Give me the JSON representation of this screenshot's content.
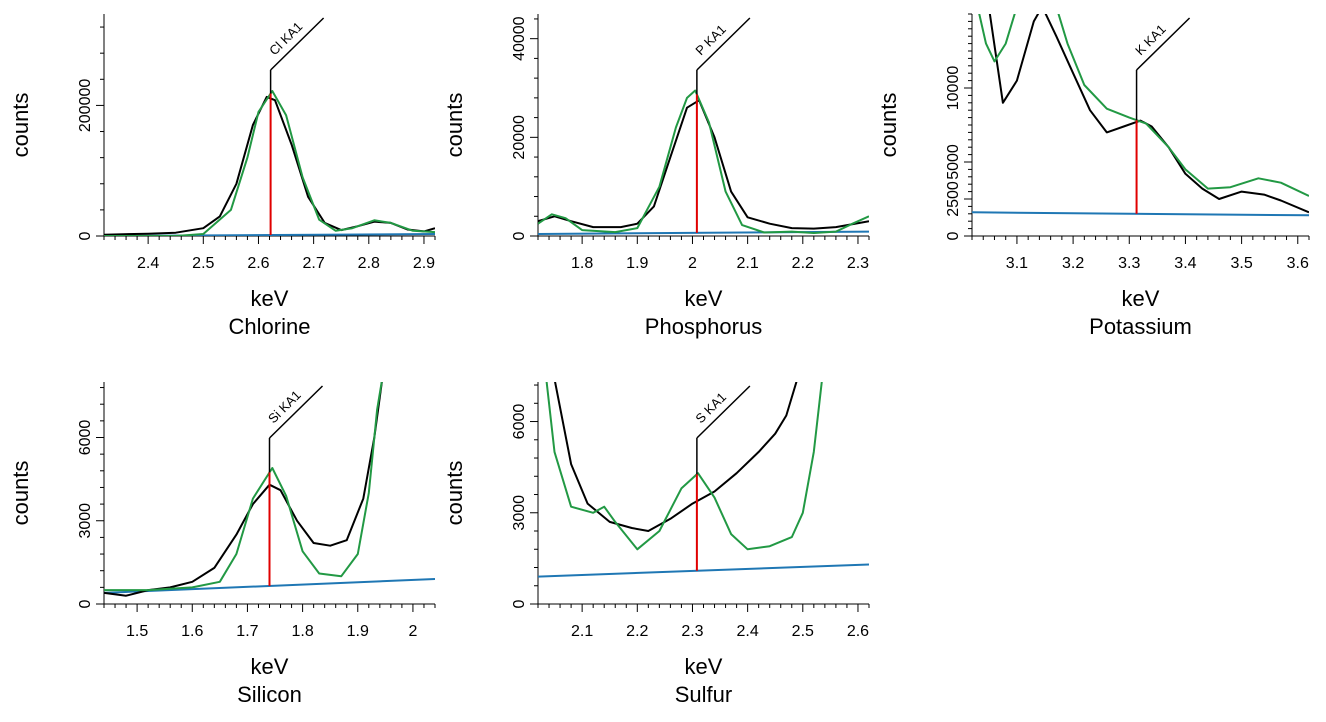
{
  "chart_data": [
    {
      "type": "line",
      "title": "Chlorine",
      "xlabel": "keV",
      "ylabel": "counts",
      "xlim": [
        2.32,
        2.92
      ],
      "ylim": [
        0,
        340000
      ],
      "xticks": [
        2.4,
        2.5,
        2.6,
        2.7,
        2.8,
        2.9
      ],
      "xtick_labels": [
        "2.4",
        "2.5",
        "2.6",
        "2.7",
        "2.8",
        "2.9"
      ],
      "yticks": [
        0,
        200000
      ],
      "ytick_labels": [
        "0",
        "200000"
      ],
      "peak": {
        "label": "Cl KA1",
        "x": 2.622
      },
      "series": [
        {
          "color": "#000000",
          "points": [
            [
              2.32,
              2000
            ],
            [
              2.4,
              3500
            ],
            [
              2.45,
              5000
            ],
            [
              2.5,
              12000
            ],
            [
              2.53,
              30000
            ],
            [
              2.56,
              80000
            ],
            [
              2.59,
              170000
            ],
            [
              2.615,
              213000
            ],
            [
              2.63,
              208000
            ],
            [
              2.66,
              140000
            ],
            [
              2.69,
              60000
            ],
            [
              2.72,
              20000
            ],
            [
              2.75,
              9000
            ],
            [
              2.78,
              15000
            ],
            [
              2.81,
              22000
            ],
            [
              2.84,
              20000
            ],
            [
              2.87,
              10000
            ],
            [
              2.9,
              7000
            ],
            [
              2.92,
              12000
            ]
          ]
        },
        {
          "color": "#229944",
          "points": [
            [
              2.32,
              0
            ],
            [
              2.45,
              0
            ],
            [
              2.5,
              3000
            ],
            [
              2.55,
              40000
            ],
            [
              2.58,
              120000
            ],
            [
              2.6,
              190000
            ],
            [
              2.625,
              222000
            ],
            [
              2.65,
              185000
            ],
            [
              2.68,
              90000
            ],
            [
              2.71,
              25000
            ],
            [
              2.74,
              8000
            ],
            [
              2.77,
              12000
            ],
            [
              2.81,
              24000
            ],
            [
              2.84,
              20000
            ],
            [
              2.88,
              8000
            ],
            [
              2.92,
              6000
            ]
          ]
        },
        {
          "color": "#1f77b4",
          "points": [
            [
              2.32,
              0
            ],
            [
              2.92,
              3000
            ]
          ]
        }
      ]
    },
    {
      "type": "line",
      "title": "Phosphorus",
      "xlabel": "keV",
      "ylabel": "counts",
      "xlim": [
        1.72,
        2.32
      ],
      "ylim": [
        0,
        45000
      ],
      "xticks": [
        1.8,
        1.9,
        2.0,
        2.1,
        2.2,
        2.3
      ],
      "xtick_labels": [
        "1.8",
        "1.9",
        "2",
        "2.1",
        "2.2",
        "2.3"
      ],
      "yticks": [
        0,
        20000,
        40000
      ],
      "ytick_labels": [
        "0",
        "20000",
        "40000"
      ],
      "peak": {
        "label": "P KA1",
        "x": 2.008
      },
      "series": [
        {
          "color": "#000000",
          "points": [
            [
              1.72,
              3000
            ],
            [
              1.75,
              4000
            ],
            [
              1.78,
              3000
            ],
            [
              1.82,
              1800
            ],
            [
              1.87,
              1800
            ],
            [
              1.9,
              2500
            ],
            [
              1.93,
              6000
            ],
            [
              1.96,
              16000
            ],
            [
              1.99,
              26000
            ],
            [
              2.012,
              27500
            ],
            [
              2.04,
              20000
            ],
            [
              2.07,
              9000
            ],
            [
              2.1,
              3800
            ],
            [
              2.14,
              2500
            ],
            [
              2.18,
              1600
            ],
            [
              2.22,
              1500
            ],
            [
              2.26,
              1800
            ],
            [
              2.32,
              3000
            ]
          ]
        },
        {
          "color": "#229944",
          "points": [
            [
              1.72,
              2500
            ],
            [
              1.745,
              4400
            ],
            [
              1.77,
              3600
            ],
            [
              1.8,
              1200
            ],
            [
              1.86,
              800
            ],
            [
              1.9,
              1600
            ],
            [
              1.94,
              10000
            ],
            [
              1.97,
              22000
            ],
            [
              1.99,
              28000
            ],
            [
              2.005,
              29500
            ],
            [
              2.03,
              23000
            ],
            [
              2.06,
              9000
            ],
            [
              2.09,
              2200
            ],
            [
              2.13,
              700
            ],
            [
              2.18,
              900
            ],
            [
              2.22,
              600
            ],
            [
              2.26,
              900
            ],
            [
              2.29,
              2500
            ],
            [
              2.32,
              4000
            ]
          ]
        },
        {
          "color": "#1f77b4",
          "points": [
            [
              1.72,
              400
            ],
            [
              2.32,
              900
            ]
          ]
        }
      ]
    },
    {
      "type": "line",
      "title": "Potassium",
      "xlabel": "keV",
      "ylabel": "counts",
      "xlim": [
        3.02,
        3.62
      ],
      "ylim": [
        0,
        15000
      ],
      "xticks": [
        3.1,
        3.2,
        3.3,
        3.4,
        3.5,
        3.6
      ],
      "xtick_labels": [
        "3.1",
        "3.2",
        "3.3",
        "3.4",
        "3.5",
        "3.6"
      ],
      "yticks": [
        0,
        2500,
        5000,
        10000
      ],
      "ytick_labels": [
        "0",
        "2500",
        "5000",
        "10000"
      ],
      "peak": {
        "label": "K KA1",
        "x": 3.313
      },
      "series": [
        {
          "color": "#000000",
          "points": [
            [
              3.05,
              15500
            ],
            [
              3.075,
              9000
            ],
            [
              3.1,
              10500
            ],
            [
              3.13,
              14500
            ],
            [
              3.145,
              15500
            ],
            [
              3.17,
              13500
            ],
            [
              3.2,
              11000
            ],
            [
              3.23,
              8500
            ],
            [
              3.26,
              7000
            ],
            [
              3.29,
              7400
            ],
            [
              3.32,
              7800
            ],
            [
              3.34,
              7400
            ],
            [
              3.37,
              6000
            ],
            [
              3.4,
              4200
            ],
            [
              3.43,
              3200
            ],
            [
              3.46,
              2500
            ],
            [
              3.5,
              3000
            ],
            [
              3.54,
              2800
            ],
            [
              3.57,
              2400
            ],
            [
              3.62,
              1600
            ]
          ]
        },
        {
          "color": "#229944",
          "points": [
            [
              3.03,
              15500
            ],
            [
              3.045,
              13000
            ],
            [
              3.06,
              11800
            ],
            [
              3.08,
              13000
            ],
            [
              3.1,
              15500
            ],
            [
              3.17,
              15500
            ],
            [
              3.19,
              13000
            ],
            [
              3.22,
              10200
            ],
            [
              3.26,
              8600
            ],
            [
              3.3,
              8000
            ],
            [
              3.33,
              7600
            ],
            [
              3.37,
              6000
            ],
            [
              3.4,
              4500
            ],
            [
              3.44,
              3200
            ],
            [
              3.48,
              3300
            ],
            [
              3.53,
              3900
            ],
            [
              3.57,
              3600
            ],
            [
              3.62,
              2700
            ]
          ]
        },
        {
          "color": "#1f77b4",
          "points": [
            [
              3.02,
              1600
            ],
            [
              3.62,
              1400
            ]
          ]
        }
      ]
    },
    {
      "type": "line",
      "title": "Silicon",
      "xlabel": "keV",
      "ylabel": "counts",
      "xlim": [
        1.44,
        2.04
      ],
      "ylim": [
        0,
        8000
      ],
      "xticks": [
        1.5,
        1.6,
        1.7,
        1.8,
        1.9,
        2.0
      ],
      "xtick_labels": [
        "1.5",
        "1.6",
        "1.7",
        "1.8",
        "1.9",
        "2"
      ],
      "yticks": [
        0,
        3000,
        6000
      ],
      "ytick_labels": [
        "0",
        "3000",
        "6000"
      ],
      "peak": {
        "label": "Si KA1",
        "x": 1.74
      },
      "series": [
        {
          "color": "#000000",
          "points": [
            [
              1.44,
              400
            ],
            [
              1.48,
              300
            ],
            [
              1.52,
              500
            ],
            [
              1.56,
              600
            ],
            [
              1.6,
              800
            ],
            [
              1.64,
              1300
            ],
            [
              1.68,
              2500
            ],
            [
              1.71,
              3600
            ],
            [
              1.74,
              4300
            ],
            [
              1.76,
              4100
            ],
            [
              1.79,
              3000
            ],
            [
              1.82,
              2200
            ],
            [
              1.85,
              2100
            ],
            [
              1.88,
              2300
            ],
            [
              1.91,
              3800
            ],
            [
              1.93,
              6000
            ],
            [
              1.945,
              8200
            ]
          ]
        },
        {
          "color": "#229944",
          "points": [
            [
              1.44,
              500
            ],
            [
              1.52,
              500
            ],
            [
              1.6,
              600
            ],
            [
              1.65,
              800
            ],
            [
              1.68,
              1800
            ],
            [
              1.71,
              3800
            ],
            [
              1.745,
              4900
            ],
            [
              1.77,
              3900
            ],
            [
              1.8,
              1900
            ],
            [
              1.83,
              1100
            ],
            [
              1.87,
              1000
            ],
            [
              1.9,
              1800
            ],
            [
              1.92,
              4000
            ],
            [
              1.935,
              7000
            ],
            [
              1.945,
              8200
            ]
          ]
        },
        {
          "color": "#1f77b4",
          "points": [
            [
              1.44,
              400
            ],
            [
              2.04,
              900
            ]
          ]
        }
      ]
    },
    {
      "type": "line",
      "title": "Sulfur",
      "xlabel": "keV",
      "ylabel": "counts",
      "xlim": [
        2.02,
        2.62
      ],
      "ylim": [
        0,
        7300
      ],
      "xticks": [
        2.1,
        2.2,
        2.3,
        2.4,
        2.5,
        2.6
      ],
      "xtick_labels": [
        "2.1",
        "2.2",
        "2.3",
        "2.4",
        "2.5",
        "2.6"
      ],
      "yticks": [
        0,
        3000,
        6000
      ],
      "ytick_labels": [
        "0",
        "3000",
        "6000"
      ],
      "peak": {
        "label": "S KA1",
        "x": 2.308
      },
      "series": [
        {
          "color": "#000000",
          "points": [
            [
              2.05,
              7400
            ],
            [
              2.08,
              4600
            ],
            [
              2.11,
              3300
            ],
            [
              2.15,
              2700
            ],
            [
              2.19,
              2500
            ],
            [
              2.22,
              2400
            ],
            [
              2.26,
              2800
            ],
            [
              2.3,
              3300
            ],
            [
              2.34,
              3700
            ],
            [
              2.38,
              4300
            ],
            [
              2.42,
              5000
            ],
            [
              2.45,
              5600
            ],
            [
              2.47,
              6200
            ],
            [
              2.49,
              7400
            ]
          ]
        },
        {
          "color": "#229944",
          "points": [
            [
              2.035,
              7400
            ],
            [
              2.05,
              5000
            ],
            [
              2.08,
              3200
            ],
            [
              2.12,
              3000
            ],
            [
              2.14,
              3200
            ],
            [
              2.16,
              2700
            ],
            [
              2.2,
              1800
            ],
            [
              2.24,
              2400
            ],
            [
              2.28,
              3800
            ],
            [
              2.31,
              4300
            ],
            [
              2.34,
              3500
            ],
            [
              2.37,
              2300
            ],
            [
              2.4,
              1800
            ],
            [
              2.44,
              1900
            ],
            [
              2.48,
              2200
            ],
            [
              2.5,
              3000
            ],
            [
              2.52,
              5000
            ],
            [
              2.535,
              7400
            ]
          ]
        },
        {
          "color": "#1f77b4",
          "points": [
            [
              2.02,
              900
            ],
            [
              2.62,
              1300
            ]
          ]
        }
      ]
    }
  ]
}
